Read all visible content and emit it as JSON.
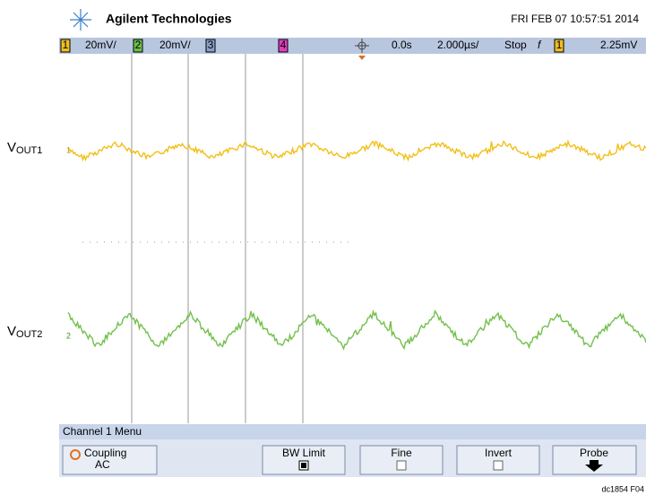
{
  "header": {
    "brand": "Agilent Technologies",
    "datetime": "FRI FEB 07 10:57:51 2014"
  },
  "status_bar": {
    "ch1": "1",
    "ch1_scale": "20mV/",
    "ch2": "2",
    "ch2_scale": "20mV/",
    "ch3": "3",
    "ch4": "4",
    "delay": "0.0s",
    "timebase": "2.000µs/",
    "run_state": "Stop",
    "trigger_slope": "f",
    "trigger_source": "1",
    "trigger_level": "2.25mV"
  },
  "traces": [
    {
      "label": "V",
      "subscript": "OUT1",
      "marker": "1"
    },
    {
      "label": "V",
      "subscript": "OUT2",
      "marker": "2"
    }
  ],
  "menu": {
    "title": "Channel 1 Menu",
    "buttons": [
      {
        "label": "Coupling",
        "value": "AC"
      },
      {
        "label": "BW Limit"
      },
      {
        "label": "Fine"
      },
      {
        "label": "Invert"
      },
      {
        "label": "Probe"
      }
    ]
  },
  "footer": "dc1854 F04"
}
